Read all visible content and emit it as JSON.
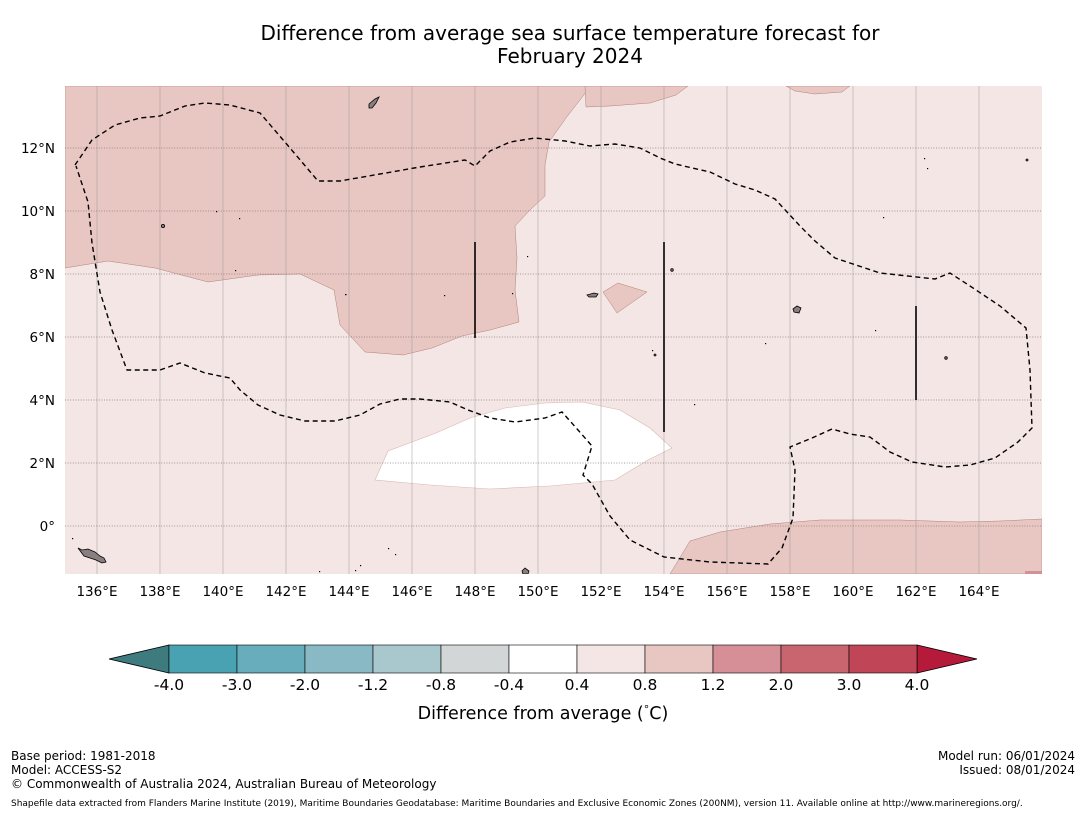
{
  "title": {
    "line1": "Difference from average sea surface temperature forecast for",
    "line2": "February 2024"
  },
  "map": {
    "lon_labels": [
      "136°E",
      "138°E",
      "140°E",
      "142°E",
      "144°E",
      "146°E",
      "148°E",
      "150°E",
      "152°E",
      "154°E",
      "156°E",
      "158°E",
      "160°E",
      "162°E",
      "164°E"
    ],
    "lat_labels": [
      "12°N",
      "10°N",
      "8°N",
      "6°N",
      "4°N",
      "2°N",
      "0°"
    ],
    "colors": {
      "band_0_4_to_0_8": "#f4e6e4",
      "band_0_8_to_1_2": "#e8c6c1",
      "band_neutral": "#ffffff"
    }
  },
  "colorbar": {
    "boundaries": [
      "-4.0",
      "-3.0",
      "-2.0",
      "-1.2",
      "-0.8",
      "-0.4",
      "0.4",
      "0.8",
      "1.2",
      "2.0",
      "3.0",
      "4.0"
    ],
    "colors": [
      "#48a2b2",
      "#67adbc",
      "#89b9c4",
      "#a9c8cd",
      "#d3d6d7",
      "#ffffff",
      "#f4e6e4",
      "#e8c6c1",
      "#d68f97",
      "#c9656f",
      "#c04556"
    ],
    "under_color": "#3d7b7f",
    "over_color": "#b51a3a",
    "label": "Difference from average (°C)",
    "label_pre": "Difference from average (",
    "label_unit": "°",
    "label_letter": "C",
    "label_post": ")"
  },
  "footer": {
    "base_period": "Base period: 1981-2018",
    "model": "Model: ACCESS-S2",
    "copyright": "© Commonwealth of Australia 2024, Australian Bureau of Meteorology",
    "model_run": "Model run: 06/01/2024",
    "issued": "Issued: 08/01/2024",
    "shapefile": "Shapefile data extracted from Flanders Marine Institute (2019), Maritime Boundaries Geodatabase: Maritime Boundaries and Exclusive Economic Zones (200NM), version 11. Available online at http://www.marineregions.org/."
  }
}
